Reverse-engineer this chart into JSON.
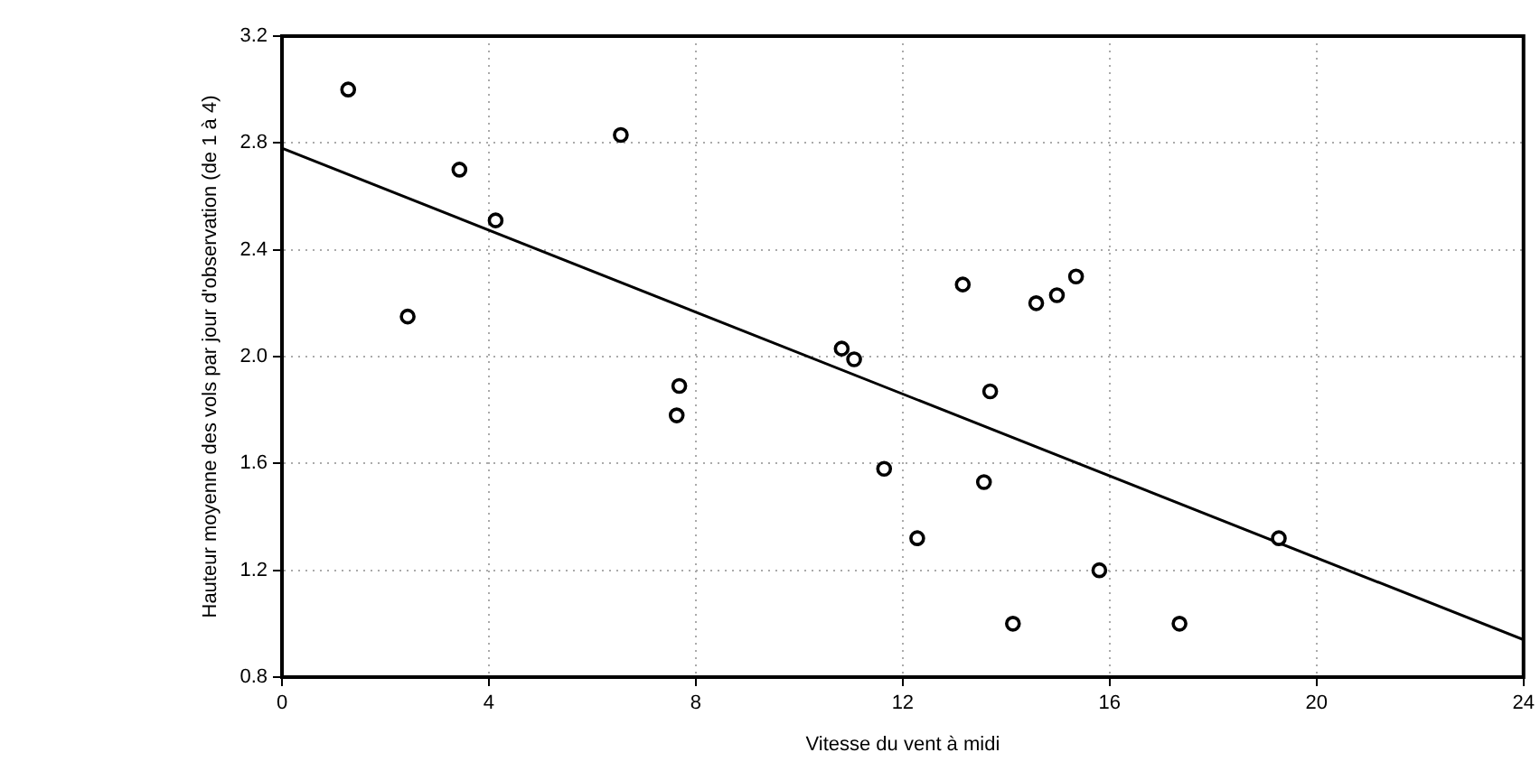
{
  "chart_data": {
    "type": "scatter",
    "xlabel": "Vitesse du vent à midi",
    "ylabel": "Hauteur moyenne des vols par jour d'observation (de 1 à 4)",
    "series": [
      {
        "type": "scatter",
        "color": "#000000",
        "marker": "circle",
        "x": [
          1.28,
          3.43,
          4.13,
          2.43,
          6.55,
          7.68,
          7.63,
          10.82,
          11.06,
          13.16,
          14.58,
          14.98,
          15.35,
          13.69,
          11.64,
          13.57,
          12.28,
          15.8,
          14.13,
          17.35,
          19.27
        ],
        "values": [
          3.0,
          2.7,
          2.51,
          2.15,
          2.83,
          1.89,
          1.78,
          2.03,
          1.99,
          2.27,
          2.2,
          2.23,
          2.3,
          1.87,
          1.58,
          1.53,
          1.32,
          1.2,
          1.0,
          1.0,
          1.32
        ]
      },
      {
        "type": "line",
        "color": "#000000",
        "marker": "none",
        "x": [
          0,
          24
        ],
        "values": [
          2.78,
          0.94
        ]
      }
    ],
    "xlim": [
      0,
      24
    ],
    "xticks": [
      0,
      4,
      8,
      12,
      16,
      20,
      24
    ],
    "ylim": [
      0.8,
      3.2
    ],
    "yticks": [
      0.8,
      1.2,
      1.6,
      {
        "value": 2,
        "label": "2.0"
      },
      2.4,
      2.8,
      3.2
    ],
    "grid": true,
    "legend": false
  }
}
